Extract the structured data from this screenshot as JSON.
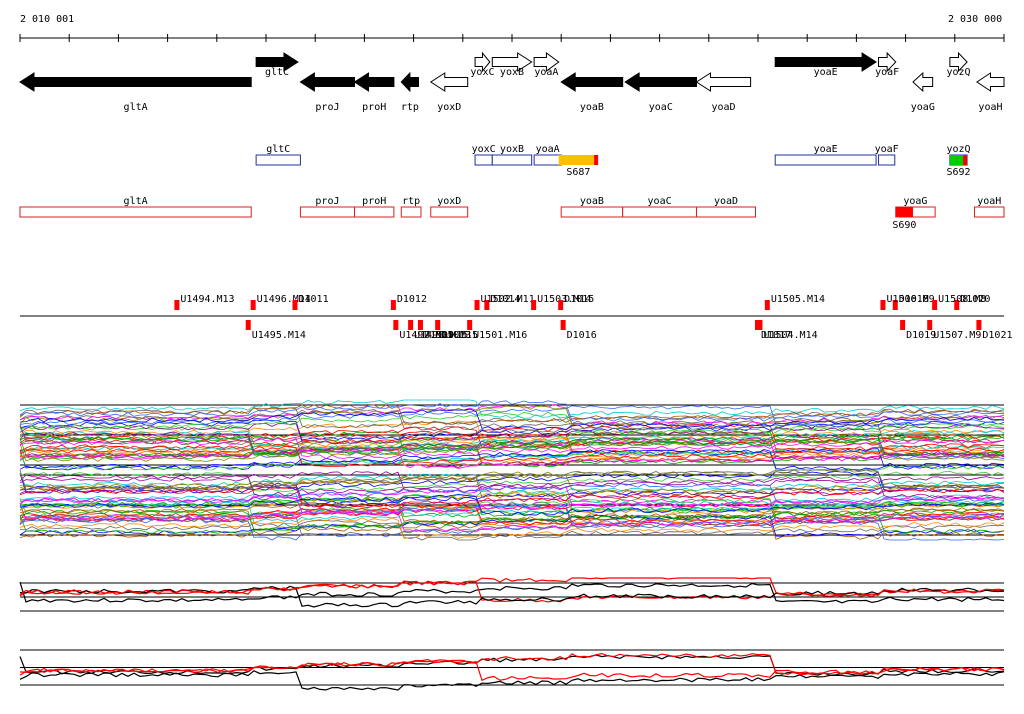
{
  "ruler": {
    "start_label": "2 010 001",
    "end_label": "2 030 000",
    "start": 2010001,
    "end": 2030000
  },
  "colors": {
    "gene_fill": "#000000",
    "gene_outline": "#000000",
    "promoter_box": "#1f2f9e",
    "operon_box": "#d42020",
    "marker": "#ff0000",
    "axis_line": "#000000"
  },
  "genes": [
    {
      "name": "gltA",
      "label": "gltA",
      "strand": "-",
      "filled": true,
      "start": 2010001,
      "end": 2014700
    },
    {
      "name": "gltC",
      "label": "gltC",
      "strand": "+",
      "filled": true,
      "start": 2014800,
      "end": 2015650
    },
    {
      "name": "proJ",
      "label": "proJ",
      "strand": "-",
      "filled": true,
      "start": 2015700,
      "end": 2016800
    },
    {
      "name": "proH",
      "label": "proH",
      "strand": "-",
      "filled": true,
      "start": 2016800,
      "end": 2017600
    },
    {
      "name": "rtp",
      "label": "rtp",
      "strand": "-",
      "filled": true,
      "start": 2017750,
      "end": 2018100
    },
    {
      "name": "yoxD",
      "label": "yoxD",
      "strand": "-",
      "filled": false,
      "start": 2018350,
      "end": 2019100
    },
    {
      "name": "yoxC",
      "label": "yoxC",
      "strand": "+",
      "filled": false,
      "start": 2019250,
      "end": 2019550
    },
    {
      "name": "yoxB",
      "label": "yoxB",
      "strand": "+",
      "filled": false,
      "start": 2019600,
      "end": 2020400
    },
    {
      "name": "yoaA",
      "label": "yoaA",
      "strand": "+",
      "filled": false,
      "start": 2020450,
      "end": 2020950
    },
    {
      "name": "yoaB",
      "label": "yoaB",
      "strand": "-",
      "filled": true,
      "start": 2021000,
      "end": 2022250
    },
    {
      "name": "yoaC",
      "label": "yoaC",
      "strand": "-",
      "filled": true,
      "start": 2022300,
      "end": 2023750
    },
    {
      "name": "yoaD",
      "label": "yoaD",
      "strand": "-",
      "filled": false,
      "start": 2023750,
      "end": 2024850
    },
    {
      "name": "yoaE",
      "label": "yoaE",
      "strand": "+",
      "filled": true,
      "start": 2025350,
      "end": 2027400
    },
    {
      "name": "yoaF",
      "label": "yoaF",
      "strand": "+",
      "filled": false,
      "start": 2027450,
      "end": 2027800
    },
    {
      "name": "yoaG",
      "label": "yoaG",
      "strand": "-",
      "filled": false,
      "start": 2028150,
      "end": 2028550
    },
    {
      "name": "yozQ",
      "label": "yozQ",
      "strand": "+",
      "filled": false,
      "start": 2028900,
      "end": 2029250
    },
    {
      "name": "yoaH",
      "label": "yoaH",
      "strand": "-",
      "filled": false,
      "start": 2029450,
      "end": 2030000
    }
  ],
  "promoter_track": [
    {
      "label": "gltC",
      "start": 2014800,
      "end": 2015700
    },
    {
      "label": "yoxC",
      "start": 2019250,
      "end": 2019600
    },
    {
      "label": "yoxB",
      "start": 2019600,
      "end": 2020400
    },
    {
      "label": "yoaA",
      "start": 2020450,
      "end": 2021000
    },
    {
      "label": "yoaE",
      "start": 2025350,
      "end": 2027400
    },
    {
      "label": "yoaF",
      "start": 2027450,
      "end": 2027780
    },
    {
      "label": "yozQ",
      "start": 2028900,
      "end": 2029250
    }
  ],
  "promoter_marks": [
    {
      "label": "S687",
      "start": 2020950,
      "end": 2021750,
      "color": "#ffc000",
      "edge": "#ff0000"
    },
    {
      "label": "S692",
      "start": 2028900,
      "end": 2029250,
      "color": "#00cc00",
      "edge": "#ff0000"
    }
  ],
  "operon_track": [
    {
      "label": "gltA",
      "start": 2010001,
      "end": 2014700
    },
    {
      "label": "proJ",
      "start": 2015700,
      "end": 2016800
    },
    {
      "label": "proH",
      "start": 2016800,
      "end": 2017600
    },
    {
      "label": "rtp",
      "start": 2017750,
      "end": 2018150
    },
    {
      "label": "yoxD",
      "start": 2018350,
      "end": 2019100
    },
    {
      "label": "yoaB",
      "start": 2021000,
      "end": 2022250
    },
    {
      "label": "yoaC",
      "start": 2022250,
      "end": 2023750
    },
    {
      "label": "yoaD",
      "start": 2023750,
      "end": 2024950
    },
    {
      "label": "yoaG",
      "start": 2027800,
      "end": 2028600
    },
    {
      "label": "yoaH",
      "start": 2029400,
      "end": 2030000
    }
  ],
  "operon_marks": [
    {
      "label": "S690",
      "start": 2027800,
      "end": 2028150,
      "color": "#ff0000"
    }
  ],
  "segment_upper": [
    {
      "label": "U1494.M13",
      "x": 2013200
    },
    {
      "label": "U1496.M14",
      "x": 2014750
    },
    {
      "label": "D1011",
      "x": 2015600
    },
    {
      "label": "D1012",
      "x": 2017600
    },
    {
      "label": "D1014",
      "x": 2019500
    },
    {
      "label": "U1502.M11",
      "x": 2019300
    },
    {
      "label": "U1503.M14",
      "x": 2020450
    },
    {
      "label": "D1015",
      "x": 2021000
    },
    {
      "label": "U1505.M14",
      "x": 2025200
    },
    {
      "label": "D1018",
      "x": 2027800
    },
    {
      "label": "U1506.M9",
      "x": 2027550
    },
    {
      "label": "D1020",
      "x": 2029050
    },
    {
      "label": "U1508.M8",
      "x": 2028600
    }
  ],
  "segment_lower": [
    {
      "label": "U1495.M14",
      "x": 2014650
    },
    {
      "label": "U1497.M15",
      "x": 2017650
    },
    {
      "label": "U1498.M15",
      "x": 2017950
    },
    {
      "label": "U1500.M15",
      "x": 2018150
    },
    {
      "label": "U1501.M16",
      "x": 2019150
    },
    {
      "label": "D1013",
      "x": 2018500
    },
    {
      "label": "D1016",
      "x": 2021050
    },
    {
      "label": "U1504.M14",
      "x": 2025050
    },
    {
      "label": "D1017",
      "x": 2025000
    },
    {
      "label": "D1019",
      "x": 2027950
    },
    {
      "label": "U1507.M9",
      "x": 2028500
    },
    {
      "label": "D1021",
      "x": 2029500
    }
  ]
}
